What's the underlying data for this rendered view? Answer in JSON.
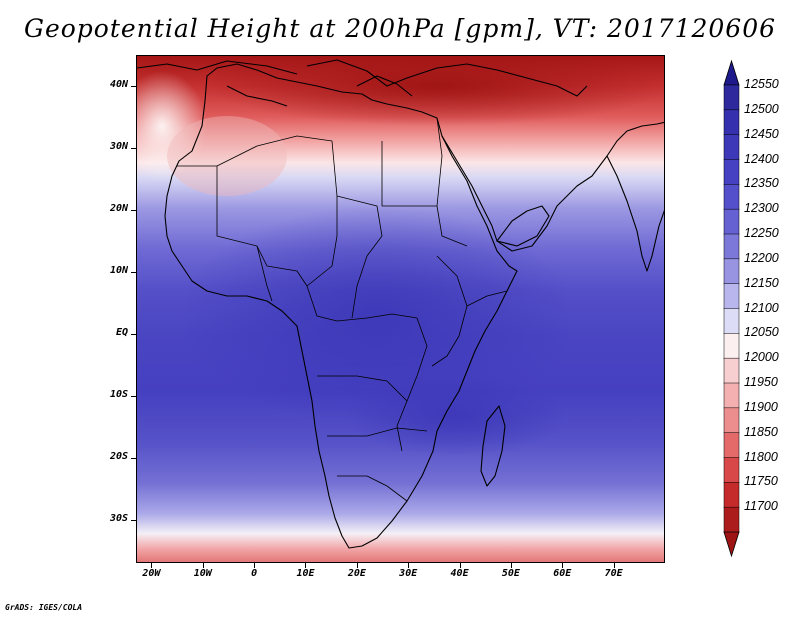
{
  "title": "Geopotential Height at 200hPa [gpm], VT: 2017120606",
  "credit": "GrADS: IGES/COLA",
  "map": {
    "lat_labels": [
      "40N",
      "30N",
      "20N",
      "10N",
      "EQ",
      "10S",
      "20S",
      "30S"
    ],
    "lon_labels": [
      "20W",
      "10W",
      "0",
      "10E",
      "20E",
      "30E",
      "40E",
      "50E",
      "60E",
      "70E"
    ]
  },
  "colorbar": {
    "labels": [
      "12550",
      "12500",
      "12450",
      "12400",
      "12350",
      "12300",
      "12250",
      "12200",
      "12150",
      "12100",
      "12050",
      "12000",
      "11950",
      "11900",
      "11850",
      "11800",
      "11750",
      "11700"
    ],
    "top_color": "#1e1a8c",
    "bottom_color": "#9e1414",
    "colors": [
      "#2e2a9e",
      "#3530ad",
      "#3c38b8",
      "#4641c2",
      "#544fca",
      "#6661d2",
      "#7c78da",
      "#9894e2",
      "#b8b6ec",
      "#dcdcf6",
      "#fbeff0",
      "#f8cfd0",
      "#f4b0b1",
      "#ec8e8e",
      "#e46a6a",
      "#d84848",
      "#c52b2b",
      "#ad1c1c"
    ]
  }
}
